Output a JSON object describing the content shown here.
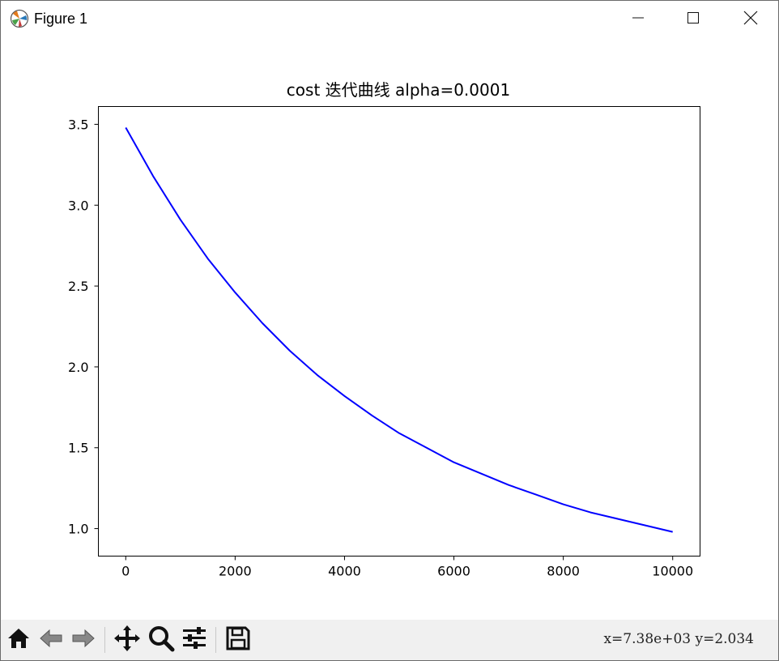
{
  "window": {
    "title": "Figure 1",
    "icon": "matplotlib-icon",
    "controls": [
      "minimize-icon",
      "maximize-icon",
      "close-icon"
    ]
  },
  "chart_data": {
    "type": "line",
    "title": "cost 迭代曲线   alpha=0.0001",
    "xlabel": "",
    "ylabel": "",
    "xlim": [
      -500,
      10500
    ],
    "ylim": [
      0.83,
      3.61
    ],
    "xticks": [
      0,
      2000,
      4000,
      6000,
      8000,
      10000
    ],
    "xtick_labels": [
      "0",
      "2000",
      "4000",
      "6000",
      "8000",
      "10000"
    ],
    "yticks": [
      1.0,
      1.5,
      2.0,
      2.5,
      3.0,
      3.5
    ],
    "ytick_labels": [
      "1.0",
      "1.5",
      "2.0",
      "2.5",
      "3.0",
      "3.5"
    ],
    "grid": false,
    "series": [
      {
        "color": "#0000ff",
        "x": [
          0,
          500,
          1000,
          1500,
          2000,
          2500,
          3000,
          3500,
          4000,
          4500,
          5000,
          5500,
          6000,
          6500,
          7000,
          7500,
          8000,
          8500,
          9000,
          9500,
          10000
        ],
        "y": [
          3.48,
          3.18,
          2.91,
          2.67,
          2.46,
          2.27,
          2.1,
          1.95,
          1.82,
          1.7,
          1.59,
          1.5,
          1.41,
          1.34,
          1.27,
          1.21,
          1.15,
          1.1,
          1.06,
          1.02,
          0.98
        ]
      }
    ]
  },
  "toolbar": {
    "buttons": [
      {
        "name": "home-button",
        "icon": "home-icon"
      },
      {
        "name": "back-button",
        "icon": "back-arrow-icon"
      },
      {
        "name": "forward-button",
        "icon": "forward-arrow-icon"
      },
      {
        "name": "pan-button",
        "icon": "move-icon"
      },
      {
        "name": "zoom-button",
        "icon": "magnifier-icon"
      },
      {
        "name": "configure-subplots-button",
        "icon": "sliders-icon"
      },
      {
        "name": "save-button",
        "icon": "floppy-disk-icon"
      }
    ],
    "coords_text": "x=7.38e+03  y=2.034"
  }
}
